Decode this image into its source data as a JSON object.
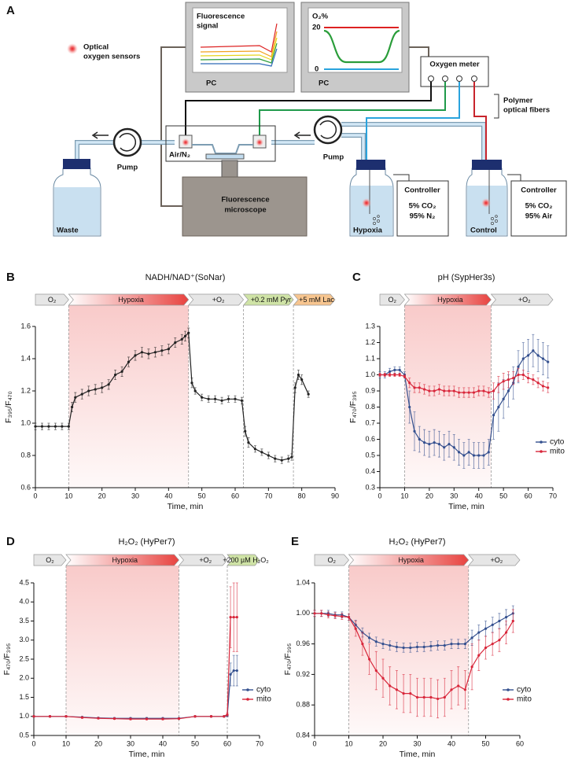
{
  "diagram": {
    "panel_label": "A",
    "legend": [
      "Optical",
      "oxygen sensors"
    ],
    "pc1": {
      "title": [
        "Fluorescence",
        "signal"
      ],
      "label": "PC"
    },
    "pc2": {
      "title": "O₂%",
      "scale_high": 20,
      "scale_low": 0,
      "label": "PC"
    },
    "oxygen_meter": "Oxygen meter",
    "fibers": [
      "Polymer",
      "optical fibers"
    ],
    "pump_left": "Pump",
    "pump_right": "Pump",
    "chamber": "Air/N₂",
    "waste": "Waste",
    "microscope": [
      "Fluorescence",
      "microscope"
    ],
    "hypoxia_bottle": "Hypoxia",
    "hypoxia_controller": [
      "Controller",
      "5% CO₂",
      "95% N₂"
    ],
    "control_bottle": "Control",
    "control_controller": [
      "Controller",
      "5% CO₂",
      "95% Air"
    ]
  },
  "chart_data": [
    {
      "type": "line",
      "panel_label": "B",
      "title": "NADH/NAD⁺(SoNar)",
      "x_label": "Time, min",
      "y_label": "F₃₉₅/F₄₇₀",
      "xlim": [
        0,
        90
      ],
      "xticks": [
        0,
        10,
        20,
        30,
        40,
        50,
        60,
        70,
        80,
        90
      ],
      "ylim": [
        0.6,
        1.6
      ],
      "yticks": [
        0.6,
        0.8,
        {
          "value": 1,
          "label": "1.0"
        },
        1.2,
        1.4,
        1.6
      ],
      "phases": [
        {
          "label": "O₂",
          "start": 0,
          "end": 10,
          "color": "#e6e6e6"
        },
        {
          "label": "Hypoxia",
          "start": 10,
          "end": 46,
          "color": "#e8423f",
          "gradient": true,
          "shade": true
        },
        {
          "label": "+O₂",
          "start": 46,
          "end": 62.5,
          "color": "#e6e6e6"
        },
        {
          "label": "+0.2 mM Pyr",
          "start": 62.5,
          "end": 77.5,
          "color": "#cfe3a6"
        },
        {
          "label": "+5 mM Lac",
          "start": 77.5,
          "end": 90,
          "color": "#f7c58f"
        }
      ],
      "x": [
        0,
        2,
        4,
        6,
        8,
        10,
        11,
        12,
        14,
        16,
        18,
        20,
        22,
        24,
        26,
        28,
        30,
        32,
        34,
        36,
        38,
        40,
        42,
        44,
        45,
        46,
        47,
        48,
        50,
        52,
        54,
        56,
        58,
        60,
        62,
        63,
        64,
        66,
        68,
        70,
        72,
        74,
        76,
        77,
        78,
        79,
        80,
        82
      ],
      "series": [
        {
          "color": "#222222",
          "values": [
            0.98,
            0.98,
            0.98,
            0.98,
            0.98,
            0.98,
            1.1,
            1.16,
            1.18,
            1.2,
            1.21,
            1.22,
            1.24,
            1.3,
            1.32,
            1.38,
            1.42,
            1.44,
            1.43,
            1.44,
            1.45,
            1.46,
            1.5,
            1.52,
            1.54,
            1.56,
            1.25,
            1.2,
            1.16,
            1.15,
            1.15,
            1.14,
            1.15,
            1.15,
            1.14,
            0.95,
            0.88,
            0.84,
            0.82,
            0.8,
            0.78,
            0.77,
            0.78,
            0.79,
            1.22,
            1.3,
            1.27,
            1.18
          ],
          "errors": [
            0.02,
            0.02,
            0.02,
            0.02,
            0.02,
            0.02,
            0.03,
            0.03,
            0.03,
            0.03,
            0.03,
            0.03,
            0.03,
            0.03,
            0.03,
            0.03,
            0.03,
            0.03,
            0.03,
            0.03,
            0.03,
            0.03,
            0.03,
            0.03,
            0.03,
            0.03,
            0.03,
            0.02,
            0.02,
            0.02,
            0.02,
            0.02,
            0.02,
            0.02,
            0.02,
            0.03,
            0.03,
            0.02,
            0.02,
            0.02,
            0.02,
            0.02,
            0.02,
            0.02,
            0.03,
            0.03,
            0.03,
            0.02
          ]
        }
      ]
    },
    {
      "type": "line",
      "panel_label": "C",
      "title": "pH (SypHer3s)",
      "x_label": "Time, min",
      "y_label": "F₄₇₀/F₃₉₅",
      "xlim": [
        0,
        70
      ],
      "xticks": [
        0,
        10,
        20,
        30,
        40,
        50,
        60,
        70
      ],
      "ylim": [
        0.3,
        1.3
      ],
      "yticks": [
        0.3,
        0.4,
        0.5,
        0.6,
        0.7,
        0.8,
        0.9,
        {
          "value": 1,
          "label": "1.0"
        },
        1.1,
        1.2,
        1.3
      ],
      "phases": [
        {
          "label": "O₂",
          "start": 0,
          "end": 10,
          "color": "#e6e6e6"
        },
        {
          "label": "Hypoxia",
          "start": 10,
          "end": 45,
          "color": "#e8423f",
          "gradient": true,
          "shade": true
        },
        {
          "label": "+O₂",
          "start": 45,
          "end": 70,
          "color": "#e6e6e6"
        }
      ],
      "legend": "lower right",
      "x": [
        0,
        2,
        4,
        6,
        8,
        10,
        12,
        14,
        16,
        18,
        20,
        22,
        24,
        26,
        28,
        30,
        32,
        34,
        36,
        38,
        40,
        42,
        44,
        46,
        48,
        50,
        52,
        54,
        56,
        58,
        60,
        62,
        64,
        66,
        68
      ],
      "series": [
        {
          "name": "cyto",
          "color": "#34508f",
          "values": [
            1.0,
            1.0,
            1.02,
            1.03,
            1.03,
            1.0,
            0.8,
            0.65,
            0.6,
            0.58,
            0.57,
            0.58,
            0.57,
            0.55,
            0.57,
            0.55,
            0.52,
            0.5,
            0.52,
            0.5,
            0.5,
            0.5,
            0.52,
            0.75,
            0.8,
            0.85,
            0.9,
            0.95,
            1.05,
            1.1,
            1.12,
            1.15,
            1.12,
            1.1,
            1.08
          ],
          "errors": [
            0.02,
            0.02,
            0.02,
            0.02,
            0.02,
            0.02,
            0.1,
            0.12,
            0.08,
            0.08,
            0.08,
            0.08,
            0.08,
            0.08,
            0.08,
            0.08,
            0.08,
            0.08,
            0.08,
            0.08,
            0.08,
            0.08,
            0.08,
            0.15,
            0.15,
            0.12,
            0.1,
            0.1,
            0.1,
            0.1,
            0.1,
            0.1,
            0.1,
            0.1,
            0.1
          ]
        },
        {
          "name": "mito",
          "color": "#d8263a",
          "values": [
            1.0,
            1.0,
            1.0,
            1.0,
            1.0,
            0.99,
            0.95,
            0.92,
            0.92,
            0.91,
            0.9,
            0.9,
            0.91,
            0.9,
            0.9,
            0.9,
            0.89,
            0.89,
            0.89,
            0.89,
            0.9,
            0.9,
            0.89,
            0.9,
            0.94,
            0.96,
            0.97,
            0.98,
            1.0,
            1.0,
            0.98,
            0.97,
            0.95,
            0.93,
            0.92
          ],
          "errors": [
            0.01,
            0.01,
            0.01,
            0.01,
            0.01,
            0.01,
            0.03,
            0.03,
            0.03,
            0.03,
            0.03,
            0.03,
            0.03,
            0.03,
            0.03,
            0.03,
            0.03,
            0.03,
            0.03,
            0.03,
            0.03,
            0.03,
            0.03,
            0.05,
            0.05,
            0.05,
            0.05,
            0.04,
            0.04,
            0.03,
            0.03,
            0.03,
            0.03,
            0.03,
            0.03
          ]
        }
      ]
    },
    {
      "type": "line",
      "panel_label": "D",
      "title": "H₂O₂ (HyPer7)",
      "x_label": "Time, min",
      "y_label": "F₄₇₀/F₃₉₅",
      "xlim": [
        0,
        70
      ],
      "xticks": [
        0,
        10,
        20,
        30,
        40,
        50,
        60,
        70
      ],
      "ylim": [
        0.5,
        4.5
      ],
      "yticks": [
        0.5,
        {
          "value": 1,
          "label": "1.0"
        },
        1.5,
        {
          "value": 2,
          "label": "2.0"
        },
        2.5,
        {
          "value": 3,
          "label": "3.0"
        },
        3.5,
        {
          "value": 4,
          "label": "4.0"
        },
        4.5
      ],
      "phases": [
        {
          "label": "O₂",
          "start": 0,
          "end": 10,
          "color": "#e6e6e6"
        },
        {
          "label": "Hypoxia",
          "start": 10,
          "end": 45,
          "color": "#e8423f",
          "gradient": true,
          "shade": true
        },
        {
          "label": "+O₂",
          "start": 45,
          "end": 60,
          "color": "#e6e6e6"
        },
        {
          "label": "+200 µM H₂O₂",
          "start": 60,
          "end": 70,
          "color": "#cfe3a6"
        }
      ],
      "legend": "lower right",
      "x": [
        0,
        5,
        10,
        15,
        20,
        25,
        30,
        35,
        40,
        45,
        50,
        55,
        59,
        60,
        61,
        62,
        63
      ],
      "series": [
        {
          "name": "cyto",
          "color": "#34508f",
          "values": [
            1.0,
            1.0,
            1.0,
            0.98,
            0.96,
            0.95,
            0.95,
            0.95,
            0.95,
            0.95,
            1.0,
            1.0,
            1.0,
            1.02,
            2.1,
            2.2,
            2.2
          ],
          "errors": [
            0.02,
            0.02,
            0.02,
            0.02,
            0.02,
            0.02,
            0.02,
            0.02,
            0.02,
            0.02,
            0.02,
            0.02,
            0.02,
            0.03,
            0.3,
            0.4,
            0.4
          ]
        },
        {
          "name": "mito",
          "color": "#d8263a",
          "values": [
            1.0,
            1.0,
            1.0,
            0.97,
            0.95,
            0.94,
            0.93,
            0.93,
            0.93,
            0.94,
            1.0,
            1.0,
            1.0,
            1.05,
            3.6,
            3.6,
            3.6
          ],
          "errors": [
            0.02,
            0.02,
            0.02,
            0.02,
            0.02,
            0.02,
            0.02,
            0.02,
            0.02,
            0.02,
            0.02,
            0.02,
            0.02,
            0.05,
            0.8,
            0.9,
            0.9
          ]
        }
      ]
    },
    {
      "type": "line",
      "panel_label": "E",
      "title": "H₂O₂ (HyPer7)",
      "x_label": "Time, min",
      "y_label": "F₄₇₀/F₃₉₅",
      "xlim": [
        0,
        60
      ],
      "xticks": [
        0,
        10,
        20,
        30,
        40,
        50,
        60
      ],
      "ylim": [
        0.84,
        1.04
      ],
      "yticks": [
        0.84,
        0.88,
        0.92,
        0.96,
        {
          "value": 1,
          "label": "1.00"
        },
        1.04
      ],
      "phases": [
        {
          "label": "O₂",
          "start": 0,
          "end": 10,
          "color": "#e6e6e6"
        },
        {
          "label": "Hypoxia",
          "start": 10,
          "end": 45,
          "color": "#e8423f",
          "gradient": true,
          "shade": true
        },
        {
          "label": "+O₂",
          "start": 45,
          "end": 60,
          "color": "#e6e6e6"
        }
      ],
      "legend": "lower right",
      "x": [
        0,
        2,
        4,
        6,
        8,
        10,
        12,
        14,
        16,
        18,
        20,
        22,
        24,
        26,
        28,
        30,
        32,
        34,
        36,
        38,
        40,
        42,
        44,
        46,
        48,
        50,
        52,
        54,
        56,
        58
      ],
      "series": [
        {
          "name": "cyto",
          "color": "#34508f",
          "values": [
            1.0,
            1.0,
            1.0,
            0.998,
            0.998,
            0.995,
            0.985,
            0.975,
            0.968,
            0.963,
            0.96,
            0.958,
            0.956,
            0.955,
            0.955,
            0.956,
            0.956,
            0.957,
            0.958,
            0.958,
            0.96,
            0.96,
            0.96,
            0.968,
            0.975,
            0.98,
            0.985,
            0.99,
            0.995,
            1.0
          ],
          "errors": [
            0.004,
            0.004,
            0.004,
            0.004,
            0.004,
            0.004,
            0.006,
            0.006,
            0.006,
            0.006,
            0.006,
            0.006,
            0.006,
            0.006,
            0.006,
            0.006,
            0.006,
            0.006,
            0.006,
            0.006,
            0.006,
            0.006,
            0.006,
            0.01,
            0.01,
            0.01,
            0.01,
            0.01,
            0.01,
            0.01
          ]
        },
        {
          "name": "mito",
          "color": "#d8263a",
          "values": [
            1.0,
            1.0,
            0.998,
            0.997,
            0.996,
            0.995,
            0.98,
            0.96,
            0.94,
            0.925,
            0.915,
            0.905,
            0.9,
            0.895,
            0.895,
            0.89,
            0.89,
            0.89,
            0.888,
            0.89,
            0.9,
            0.905,
            0.9,
            0.93,
            0.945,
            0.955,
            0.96,
            0.965,
            0.975,
            0.99
          ],
          "errors": [
            0.004,
            0.004,
            0.004,
            0.004,
            0.004,
            0.004,
            0.01,
            0.015,
            0.02,
            0.025,
            0.025,
            0.025,
            0.025,
            0.025,
            0.025,
            0.025,
            0.025,
            0.025,
            0.025,
            0.025,
            0.025,
            0.025,
            0.025,
            0.03,
            0.02,
            0.015,
            0.015,
            0.015,
            0.015,
            0.015
          ]
        }
      ]
    }
  ]
}
